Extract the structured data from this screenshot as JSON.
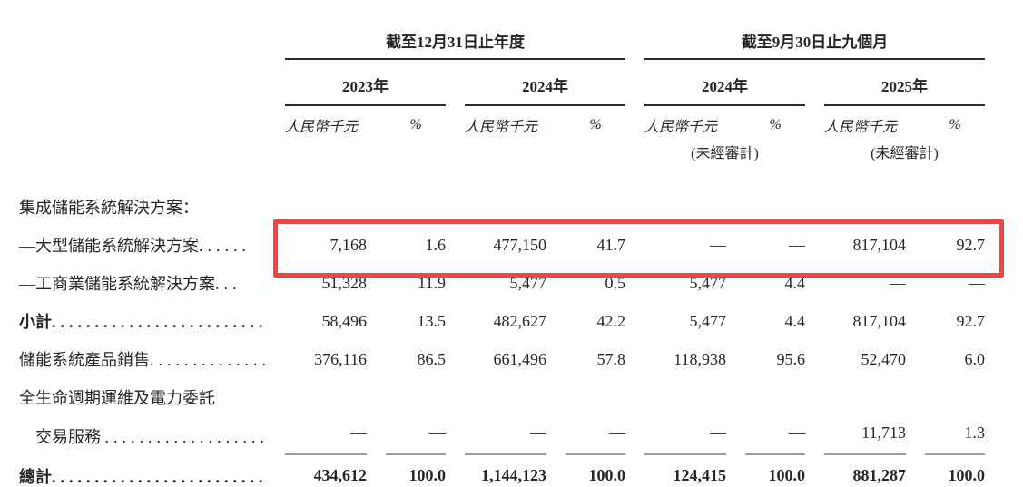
{
  "accent": {
    "highlight_red": "#ee4644",
    "text": "#262626",
    "rule_grey": "#9b9b9b"
  },
  "table": {
    "groups": [
      {
        "title": "截至12月31日止年度",
        "years": [
          {
            "label": "2023年",
            "note": ""
          },
          {
            "label": "2024年",
            "note": ""
          }
        ]
      },
      {
        "title": "截至9月30日止九個月",
        "years": [
          {
            "label": "2024年",
            "note": "(未經審計)"
          },
          {
            "label": "2025年",
            "note": "(未經審計)"
          }
        ]
      }
    ],
    "unit_header": "人民幣千元",
    "percent_header": "%",
    "rows": [
      {
        "label": "集成儲能系統解決方案：",
        "leader": "",
        "cells": [
          "",
          "",
          "",
          "",
          "",
          "",
          "",
          ""
        ]
      },
      {
        "label": "—大型儲能系統解決方案",
        "leader": "......",
        "cells": [
          "7,168",
          "1.6",
          "477,150",
          "41.7",
          "—",
          "—",
          "817,104",
          "92.7"
        ]
      },
      {
        "label": "—工商業儲能系統解決方案",
        "leader": "...",
        "cells": [
          "51,328",
          "11.9",
          "5,477",
          "0.5",
          "5,477",
          "4.4",
          "—",
          "—"
        ]
      },
      {
        "label": "小計",
        "leader": "................................",
        "cells": [
          "58,496",
          "13.5",
          "482,627",
          "42.2",
          "5,477",
          "4.4",
          "817,104",
          "92.7"
        ]
      },
      {
        "label": "儲能系統產品銷售",
        "leader": "..................",
        "cells": [
          "376,116",
          "86.5",
          "661,496",
          "57.8",
          "118,938",
          "95.6",
          "52,470",
          "6.0"
        ]
      },
      {
        "label": "全生命週期運維及電力委託",
        "leader": "",
        "cells": [
          "",
          "",
          "",
          "",
          "",
          "",
          "",
          ""
        ]
      },
      {
        "label": "　交易服務 ",
        "leader": "........................",
        "cells": [
          "—",
          "—",
          "—",
          "—",
          "—",
          "—",
          "11,713",
          "1.3"
        ]
      },
      {
        "label": "總計",
        "leader": "................................",
        "cells": [
          "434,612",
          "100.0",
          "1,144,123",
          "100.0",
          "124,415",
          "100.0",
          "881,287",
          "100.0"
        ]
      }
    ]
  }
}
